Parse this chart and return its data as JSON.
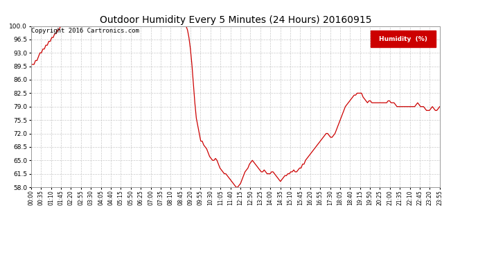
{
  "title": "Outdoor Humidity Every 5 Minutes (24 Hours) 20160915",
  "copyright_text": "Copyright 2016 Cartronics.com",
  "legend_label": "Humidity  (%)",
  "legend_bg": "#cc0000",
  "legend_text_color": "#ffffff",
  "line_color": "#cc0000",
  "bg_color": "#ffffff",
  "grid_color": "#bbbbbb",
  "ylim": [
    58.0,
    100.0
  ],
  "yticks": [
    58.0,
    61.5,
    65.0,
    68.5,
    72.0,
    75.5,
    79.0,
    82.5,
    86.0,
    89.5,
    93.0,
    96.5,
    100.0
  ],
  "humidity_data": [
    90,
    90,
    90,
    91,
    91,
    92,
    93,
    93,
    94,
    94,
    95,
    95,
    96,
    96,
    97,
    97,
    98,
    98,
    99,
    99,
    100,
    100,
    100,
    100,
    100,
    100,
    100,
    100,
    100,
    100,
    100,
    100,
    100,
    100,
    100,
    100,
    100,
    100,
    100,
    100,
    100,
    100,
    100,
    100,
    100,
    100,
    100,
    100,
    100,
    100,
    100,
    100,
    100,
    100,
    100,
    100,
    100,
    100,
    100,
    100,
    100,
    100,
    100,
    100,
    100,
    100,
    100,
    100,
    100,
    100,
    100,
    100,
    100,
    100,
    100,
    100,
    100,
    100,
    100,
    100,
    100,
    100,
    100,
    100,
    100,
    100,
    100,
    100,
    100,
    100,
    100,
    100,
    100,
    100,
    100,
    100,
    100,
    100,
    100,
    100,
    100,
    100,
    100,
    100,
    100,
    100,
    99,
    97,
    94,
    90,
    85,
    80,
    76,
    74,
    72,
    70,
    70,
    69,
    68.5,
    68,
    67,
    66,
    65.5,
    65,
    65,
    65.5,
    65,
    64,
    63,
    62.5,
    62,
    61.5,
    61.5,
    61,
    60.5,
    60,
    59.5,
    59,
    58.5,
    58,
    58,
    58.5,
    59,
    60,
    61,
    62,
    62.5,
    63,
    64,
    64.5,
    65,
    64.5,
    64,
    63.5,
    63,
    62.5,
    62,
    62,
    62.5,
    62,
    61.5,
    61.5,
    61.5,
    62,
    62,
    61.5,
    61,
    60.5,
    60,
    59.5,
    60,
    60.5,
    61,
    61,
    61.5,
    61.5,
    62,
    62,
    62.5,
    62,
    62,
    62.5,
    63,
    63,
    64,
    64,
    65,
    65.5,
    66,
    66.5,
    67,
    67.5,
    68,
    68.5,
    69,
    69.5,
    70,
    70.5,
    71,
    71.5,
    72,
    72,
    71.5,
    71,
    71,
    71.5,
    72,
    73,
    74,
    75,
    76,
    77,
    78,
    79,
    79.5,
    80,
    80.5,
    81,
    81.5,
    82,
    82,
    82.5,
    82.5,
    82.5,
    82.5,
    81.5,
    81,
    80.5,
    80,
    80.5,
    80.5,
    80,
    80,
    80,
    80,
    80,
    80,
    80,
    80,
    80,
    80,
    80,
    80.5,
    80.5,
    80,
    80,
    80,
    79.5,
    79,
    79,
    79,
    79,
    79,
    79,
    79,
    79,
    79,
    79,
    79,
    79,
    79,
    79.5,
    80,
    79.5,
    79,
    79,
    79,
    78.5,
    78,
    78,
    78,
    78.5,
    79,
    78.5,
    78,
    78,
    78.5,
    79
  ],
  "xlabel_ticks": [
    "00:00",
    "00:35",
    "01:10",
    "01:45",
    "02:20",
    "02:55",
    "03:30",
    "04:05",
    "04:40",
    "05:15",
    "05:50",
    "06:25",
    "07:00",
    "07:35",
    "08:10",
    "08:45",
    "09:20",
    "09:55",
    "10:30",
    "11:05",
    "11:40",
    "12:15",
    "12:50",
    "13:25",
    "14:00",
    "14:35",
    "15:10",
    "15:45",
    "16:20",
    "16:55",
    "17:30",
    "18:05",
    "18:40",
    "19:15",
    "19:50",
    "20:25",
    "21:00",
    "21:35",
    "22:10",
    "22:45",
    "23:20",
    "23:55"
  ],
  "title_fontsize": 10,
  "copyright_fontsize": 6.5,
  "xtick_fontsize": 5.5,
  "ytick_fontsize": 6.5,
  "legend_fontsize": 6.5
}
